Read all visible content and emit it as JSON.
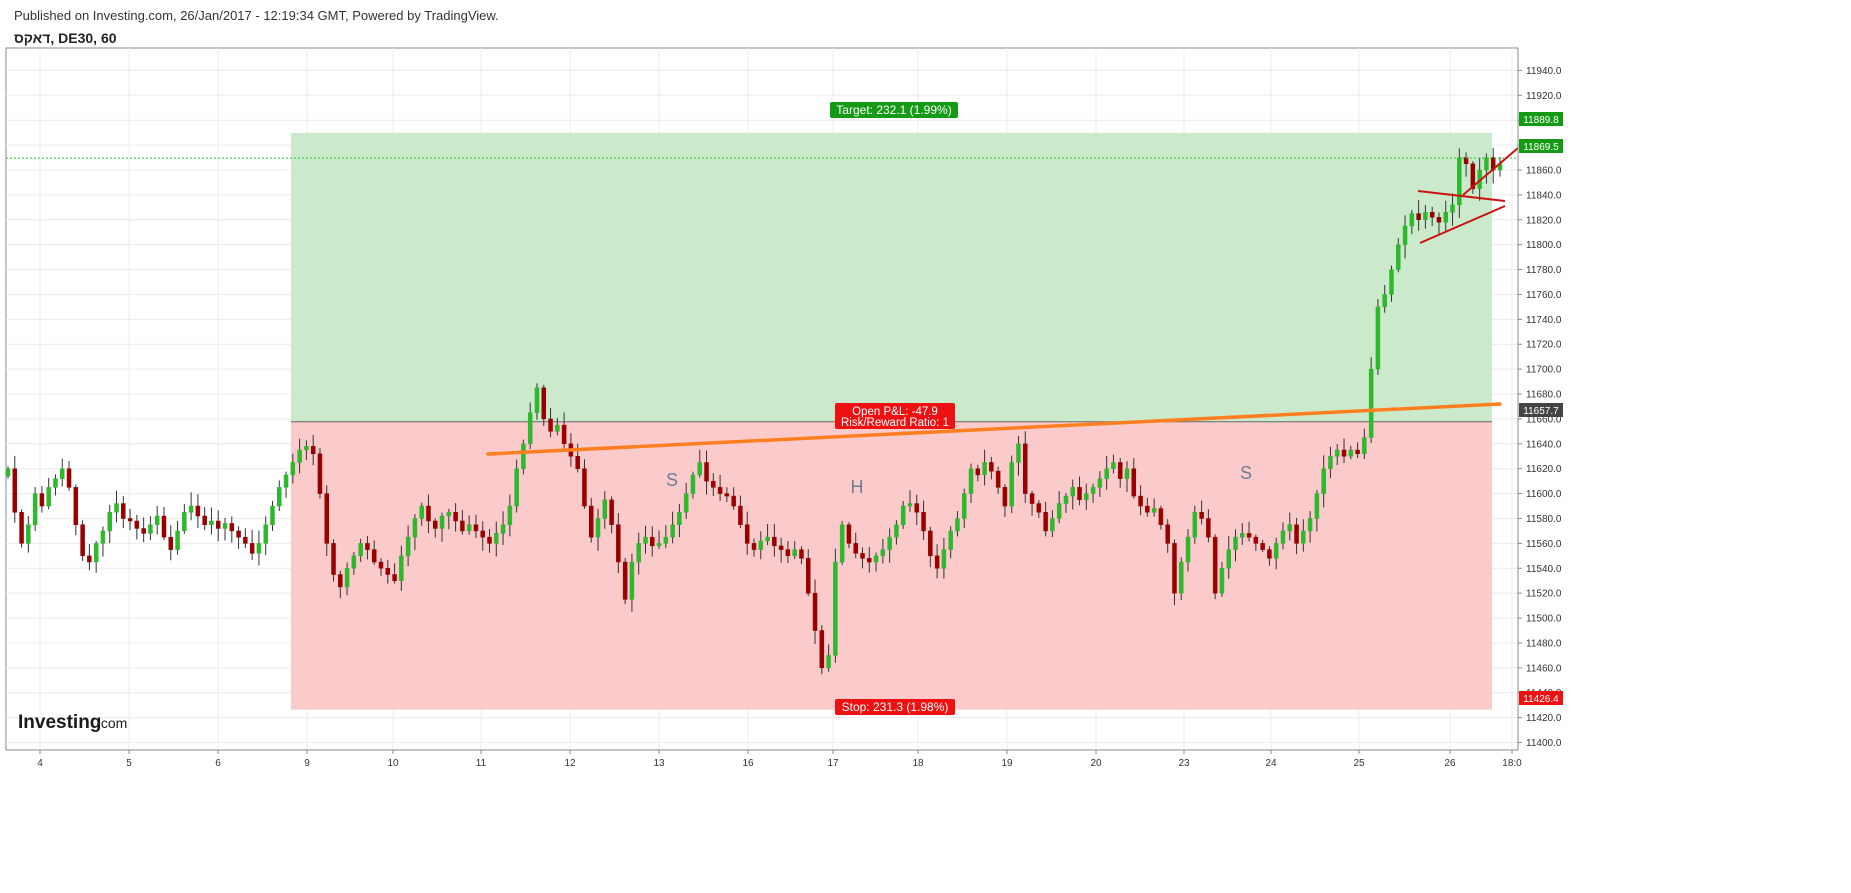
{
  "header": {
    "published": "Published on Investing.com, 26/Jan/2017 - 12:19:34 GMT, Powered by TradingView.",
    "symbol_title": "דאקס, DE30, 60"
  },
  "logo": {
    "brand": "Investing",
    "suffix": ".com"
  },
  "colors": {
    "up_candle": "#2eb82e",
    "down_candle": "#990000",
    "target_zone": "#cbeacb",
    "stop_zone": "#fbcaca",
    "target_label": "#149a14",
    "stop_label": "#ee1111",
    "trendline": "#ff7f20",
    "triangle_lines": "#cc1111",
    "current_price_line": "#27c427"
  },
  "chart_data": {
    "type": "candlestick",
    "title": "דאקס, DE30, 60",
    "x_tick_labels": [
      "4",
      "5",
      "6",
      "9",
      "10",
      "11",
      "12",
      "13",
      "16",
      "17",
      "18",
      "19",
      "20",
      "23",
      "24",
      "25",
      "26",
      "18:0"
    ],
    "y_tick_labels": [
      "11940.0",
      "11920.0",
      "11900.0",
      "11880.0",
      "11860.0",
      "11840.0",
      "11820.0",
      "11800.0",
      "11780.0",
      "11760.0",
      "11740.0",
      "11720.0",
      "11700.0",
      "11680.0",
      "11660.0",
      "11640.0",
      "11620.0",
      "11600.0",
      "11580.0",
      "11560.0",
      "11540.0",
      "11520.0",
      "11500.0",
      "11480.0",
      "11460.0",
      "11440.0",
      "11420.0",
      "11400.0"
    ],
    "y_ticks": [
      11940,
      11920,
      11900,
      11880,
      11860,
      11840,
      11820,
      11800,
      11780,
      11760,
      11740,
      11720,
      11700,
      11680,
      11660,
      11640,
      11620,
      11600,
      11580,
      11560,
      11540,
      11520,
      11500,
      11480,
      11460,
      11440,
      11420,
      11400
    ],
    "ylim": [
      11394,
      11958
    ],
    "grid": true,
    "closes": [
      11620,
      11585,
      11560,
      11575,
      11600,
      11590,
      11605,
      11612,
      11620,
      11605,
      11575,
      11550,
      11545,
      11560,
      11570,
      11585,
      11592,
      11580,
      11578,
      11572,
      11568,
      11575,
      11582,
      11565,
      11555,
      11570,
      11585,
      11590,
      11582,
      11575,
      11578,
      11572,
      11576,
      11570,
      11565,
      11560,
      11552,
      11560,
      11575,
      11590,
      11605,
      11615,
      11625,
      11635,
      11638,
      11632,
      11600,
      11560,
      11535,
      11525,
      11540,
      11550,
      11560,
      11555,
      11545,
      11540,
      11535,
      11530,
      11550,
      11565,
      11580,
      11590,
      11578,
      11572,
      11582,
      11585,
      11578,
      11570,
      11575,
      11570,
      11565,
      11560,
      11568,
      11575,
      11590,
      11620,
      11640,
      11665,
      11685,
      11660,
      11650,
      11655,
      11640,
      11630,
      11620,
      11590,
      11565,
      11580,
      11595,
      11575,
      11545,
      11515,
      11545,
      11560,
      11565,
      11558,
      11560,
      11565,
      11575,
      11585,
      11600,
      11615,
      11625,
      11610,
      11605,
      11600,
      11598,
      11590,
      11575,
      11560,
      11555,
      11562,
      11565,
      11558,
      11555,
      11550,
      11555,
      11548,
      11520,
      11490,
      11460,
      11470,
      11545,
      11575,
      11560,
      11552,
      11548,
      11545,
      11550,
      11555,
      11565,
      11575,
      11590,
      11592,
      11585,
      11570,
      11550,
      11540,
      11555,
      11570,
      11580,
      11600,
      11620,
      11615,
      11625,
      11618,
      11605,
      11590,
      11625,
      11640,
      11600,
      11592,
      11585,
      11570,
      11580,
      11592,
      11598,
      11605,
      11595,
      11600,
      11605,
      11612,
      11620,
      11625,
      11612,
      11620,
      11598,
      11590,
      11585,
      11588,
      11575,
      11560,
      11520,
      11545,
      11565,
      11585,
      11580,
      11565,
      11520,
      11540,
      11555,
      11565,
      11568,
      11565,
      11560,
      11555,
      11548,
      11560,
      11570,
      11575,
      11560,
      11570,
      11580,
      11600,
      11620,
      11630,
      11635,
      11630,
      11635,
      11632,
      11645,
      11700,
      11750,
      11760,
      11780,
      11800,
      11815,
      11825,
      11820,
      11826,
      11822,
      11818,
      11826,
      11832,
      11870,
      11865,
      11845,
      11860,
      11870,
      11860,
      11865
    ]
  },
  "overlays": {
    "target_label": "Target: 232.1 (1.99%)",
    "stop_label": "Stop: 231.3 (1.98%)",
    "pnl_label": "Open P&L: -47.9",
    "rr_label": "Risk/Reward Ratio: 1",
    "pattern_letters": [
      "S",
      "H",
      "S"
    ],
    "entry_price": 11657.7,
    "target_price": 11889.8,
    "stop_price": 11426.4,
    "current_price": 11869.5,
    "price_badges": [
      "11889.8",
      "11869.5",
      "11657.7",
      "11426.4"
    ]
  }
}
